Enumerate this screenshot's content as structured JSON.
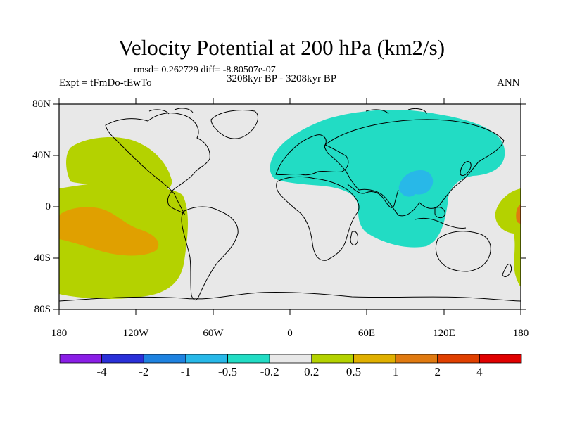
{
  "title": "Velocity Potential at 200 hPa (km2/s)",
  "stats": "rmsd= 0.262729  diff= -8.80507e-07",
  "experiment": "Expt = tFmDo-tEwTo",
  "time_period": "3208kyr BP - 3208kyr BP",
  "season": "ANN",
  "axes": {
    "lat_labels": [
      "80N",
      "40N",
      "0",
      "40S",
      "80S"
    ],
    "lon_labels": [
      "180",
      "120W",
      "60W",
      "0",
      "60E",
      "120E",
      "180"
    ]
  },
  "colors": {
    "plot_background": "#e8e8e8",
    "coastline": "#000000",
    "cyan_region": "#22dcc4",
    "blue_region": "#28b8e8",
    "lime_region": "#b4d200",
    "orange_region": "#e0a000",
    "dark_orange": "#e07a10"
  },
  "colorbar": {
    "labels": [
      "-4",
      "-2",
      "-1",
      "-0.5",
      "-0.2",
      "0.2",
      "0.5",
      "1",
      "2",
      "4"
    ],
    "colors": [
      "#8a1ee6",
      "#2a30d8",
      "#1e82e0",
      "#28b8e8",
      "#22dcc4",
      "#e8e8e8",
      "#b4d200",
      "#e0b000",
      "#e07a10",
      "#e04000",
      "#e00000"
    ]
  }
}
